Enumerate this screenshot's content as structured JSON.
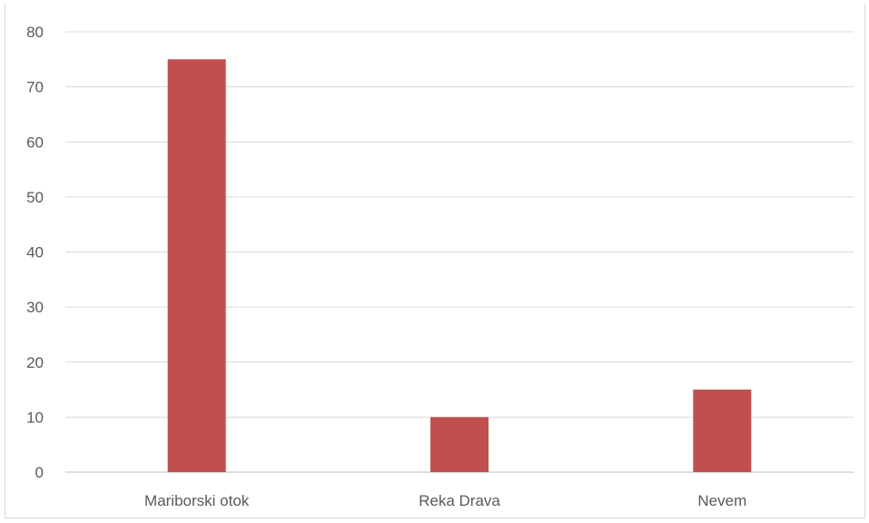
{
  "chart_data": {
    "type": "bar",
    "title": "",
    "xlabel": "",
    "ylabel": "",
    "categories": [
      "Mariborski otok",
      "Reka Drava",
      "Nevem"
    ],
    "values": [
      75,
      10,
      15
    ],
    "ylim": [
      0,
      80
    ],
    "yticks": [
      0,
      10,
      20,
      30,
      40,
      50,
      60,
      70,
      80
    ],
    "grid": true,
    "legend": "none",
    "bar_color": "#c0504d",
    "grid_color": "#d9d9d9",
    "text_color": "#595959"
  }
}
